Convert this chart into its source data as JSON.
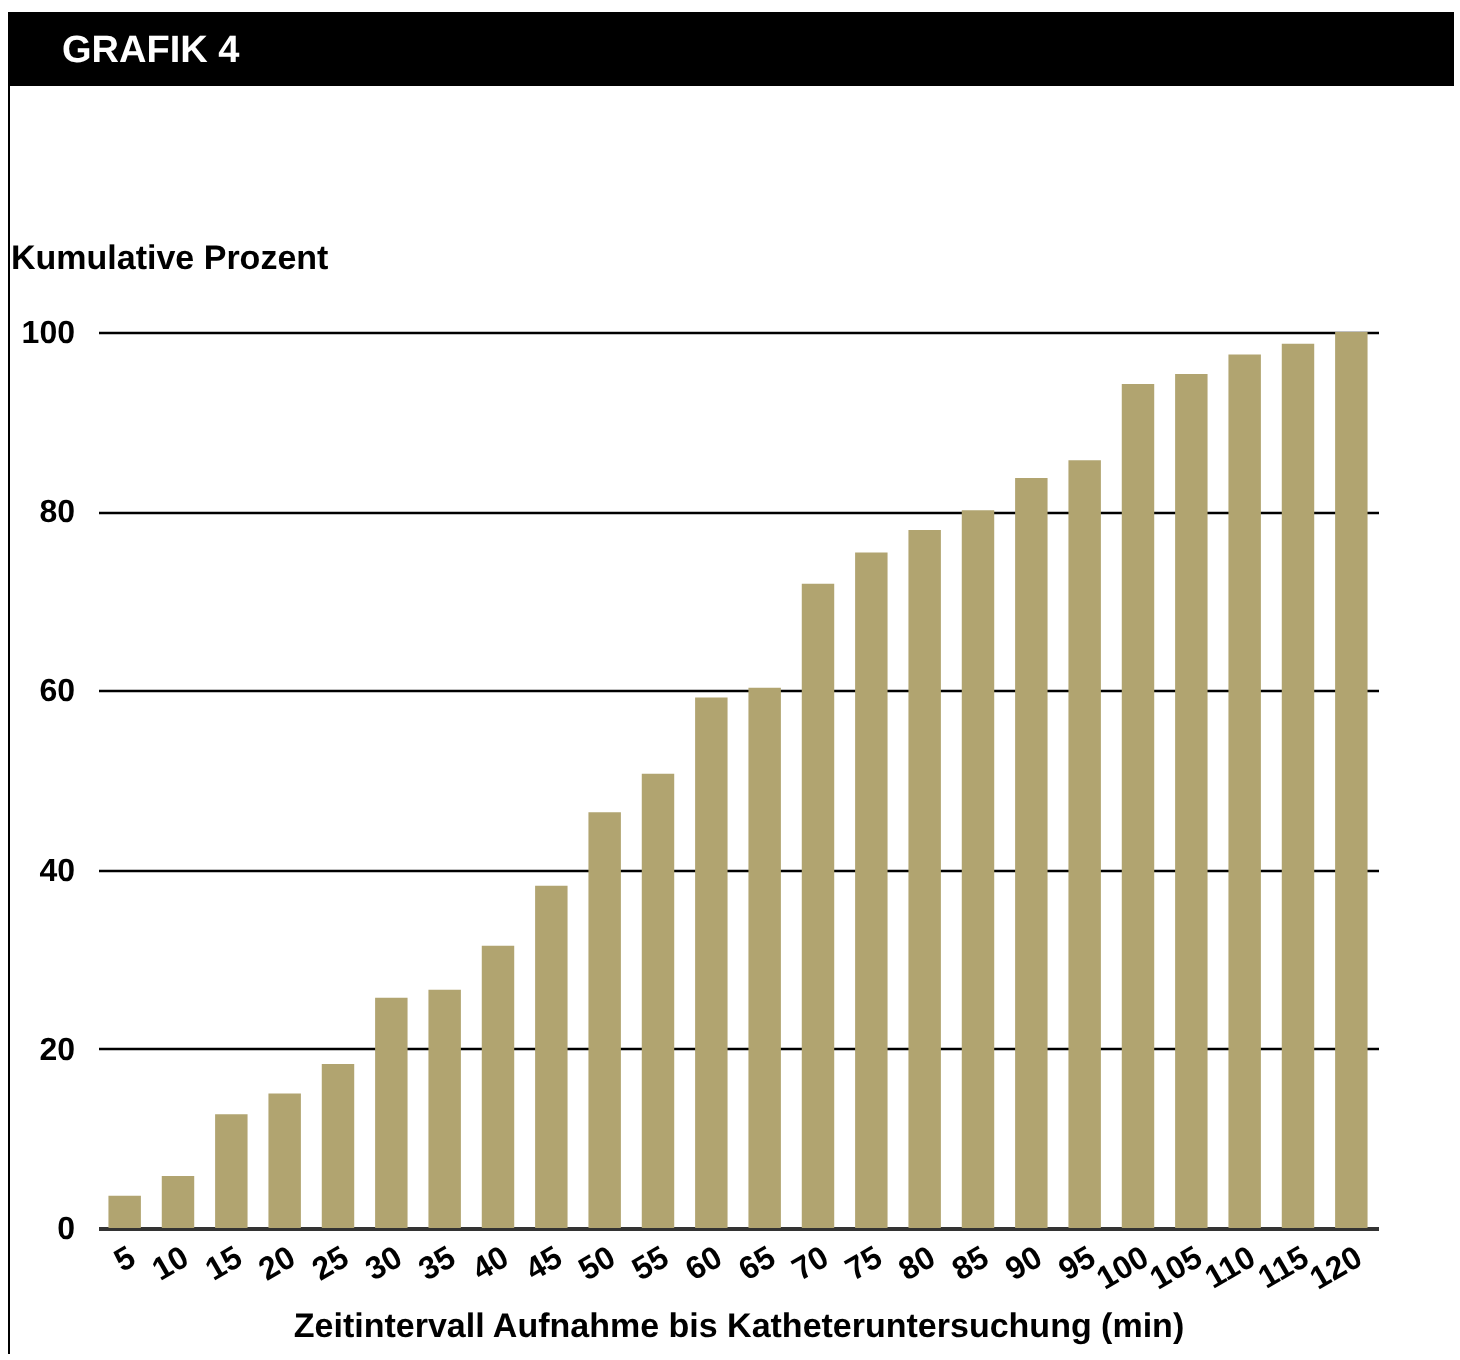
{
  "chart_data": {
    "type": "bar",
    "title": "GRAFIK 4",
    "xlabel": "Zeitintervall Aufnahme bis Katheteruntersuchung (min)",
    "ylabel": "Kumulative Prozent",
    "categories": [
      "5",
      "10",
      "15",
      "20",
      "25",
      "30",
      "35",
      "40",
      "45",
      "50",
      "55",
      "60",
      "65",
      "70",
      "75",
      "80",
      "85",
      "90",
      "95",
      "100",
      "105",
      "110",
      "115",
      "120"
    ],
    "values": [
      3.6,
      5.8,
      12.7,
      15,
      18.3,
      25.7,
      26.6,
      31.5,
      38.2,
      46.4,
      50.7,
      59.2,
      60.3,
      71.9,
      75.4,
      77.9,
      80.1,
      83.7,
      85.7,
      94.2,
      95.3,
      97.5,
      98.7,
      100
    ],
    "color": "#b1a470",
    "ylim": [
      0,
      100
    ],
    "yticks": [
      0,
      20,
      40,
      60,
      80,
      100
    ],
    "grid": "y"
  }
}
